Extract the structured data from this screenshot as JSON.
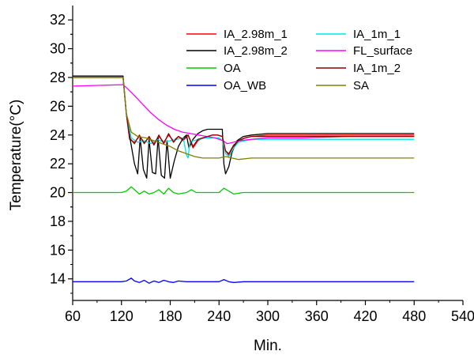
{
  "chart_data": {
    "type": "line",
    "xlabel": "Min.",
    "ylabel": "Temperature(°C)",
    "xlim": [
      60,
      540
    ],
    "ylim": [
      12.5,
      33
    ],
    "x_ticks": [
      "60",
      "120",
      "180",
      "240",
      "300",
      "360",
      "420",
      "480",
      "540"
    ],
    "y_ticks": [
      "14",
      "16",
      "18",
      "20",
      "22",
      "24",
      "26",
      "28",
      "30",
      "32"
    ],
    "grid": false,
    "legend_position": "top-right",
    "legend": [
      "IA_2.98m_1",
      "IA_2.98m_2",
      "OA",
      "OA_WB",
      "IA_1m_1",
      "FL_surface",
      "IA_1m_2",
      "SA"
    ],
    "series": [
      {
        "name": "IA_2.98m_1",
        "color": "#ff0000",
        "x": [
          60,
          122,
          126,
          130,
          136,
          142,
          148,
          154,
          160,
          166,
          172,
          178,
          184,
          190,
          196,
          202,
          208,
          214,
          220,
          226,
          232,
          238,
          244,
          248,
          252,
          258,
          264,
          272,
          280,
          300,
          340,
          400,
          480
        ],
        "y": [
          28.0,
          28.0,
          25.5,
          23.7,
          23.5,
          23.9,
          23.5,
          23.8,
          23.4,
          23.9,
          23.5,
          24.0,
          23.6,
          23.9,
          23.6,
          24.0,
          23.1,
          23.6,
          23.8,
          23.9,
          24.0,
          24.0,
          23.9,
          22.9,
          22.6,
          23.2,
          23.6,
          23.8,
          23.9,
          24.0,
          24.0,
          24.0,
          24.0
        ]
      },
      {
        "name": "IA_2.98m_2",
        "color": "#000000",
        "x": [
          60,
          122,
          126,
          131,
          136,
          140,
          143,
          147,
          151,
          154,
          158,
          162,
          165,
          169,
          173,
          176,
          180,
          185,
          190,
          196,
          200,
          203,
          208,
          214,
          220,
          226,
          232,
          238,
          244,
          246,
          248,
          252,
          256,
          262,
          270,
          280,
          300,
          340,
          400,
          480
        ],
        "y": [
          28.1,
          28.1,
          25.5,
          23.6,
          22.0,
          21.3,
          23.8,
          21.6,
          21.0,
          23.7,
          21.4,
          21.3,
          23.8,
          21.2,
          21.0,
          23.6,
          21.0,
          22.2,
          23.2,
          23.8,
          24.0,
          23.1,
          23.7,
          24.1,
          24.3,
          24.4,
          24.4,
          24.4,
          24.4,
          22.0,
          21.3,
          21.8,
          22.8,
          23.6,
          23.9,
          24.0,
          24.1,
          24.1,
          24.1,
          24.1
        ]
      },
      {
        "name": "OA",
        "color": "#00cc00",
        "x": [
          60,
          120,
          126,
          132,
          136,
          142,
          148,
          154,
          160,
          166,
          172,
          178,
          184,
          190,
          200,
          206,
          212,
          230,
          240,
          246,
          252,
          258,
          270,
          300,
          360,
          420,
          480
        ],
        "y": [
          20.0,
          20.0,
          20.1,
          20.4,
          20.2,
          19.9,
          20.1,
          19.9,
          20.0,
          20.2,
          19.9,
          20.3,
          20.0,
          19.9,
          20.0,
          20.2,
          20.0,
          20.0,
          20.0,
          20.3,
          20.1,
          19.9,
          20.0,
          20.0,
          20.0,
          20.0,
          20.0
        ]
      },
      {
        "name": "OA_WB",
        "color": "#0000ff",
        "x": [
          60,
          90,
          120,
          126,
          132,
          136,
          142,
          148,
          154,
          160,
          166,
          172,
          178,
          184,
          190,
          200,
          220,
          240,
          246,
          252,
          258,
          270,
          300,
          360,
          420,
          480
        ],
        "y": [
          13.8,
          13.8,
          13.8,
          13.85,
          14.05,
          13.85,
          13.75,
          13.9,
          13.7,
          13.85,
          13.75,
          13.9,
          13.8,
          13.75,
          13.85,
          13.8,
          13.8,
          13.8,
          13.95,
          13.8,
          13.75,
          13.8,
          13.8,
          13.8,
          13.8,
          13.8
        ]
      },
      {
        "name": "IA_1m_1",
        "color": "#00e5e5",
        "x": [
          60,
          122,
          126,
          132,
          140,
          148,
          156,
          164,
          172,
          180,
          188,
          196,
          200,
          202,
          204,
          208,
          216,
          224,
          232,
          240,
          244,
          248,
          252,
          258,
          264,
          272,
          280,
          300,
          340,
          400,
          480
        ],
        "y": [
          28.0,
          28.0,
          25.5,
          23.8,
          23.5,
          23.6,
          23.4,
          23.7,
          23.5,
          23.6,
          23.7,
          23.8,
          22.6,
          22.4,
          23.5,
          23.6,
          23.7,
          23.8,
          23.8,
          23.8,
          23.6,
          22.7,
          22.5,
          23.1,
          23.5,
          23.6,
          23.7,
          23.7,
          23.7,
          23.7,
          23.7
        ]
      },
      {
        "name": "FL_surface",
        "color": "#ff00ff",
        "x": [
          60,
          122,
          126,
          135,
          145,
          155,
          165,
          175,
          185,
          195,
          205,
          215,
          225,
          235,
          245,
          250,
          258,
          265,
          280,
          300,
          340,
          400,
          480
        ],
        "y": [
          27.4,
          27.5,
          27.3,
          26.8,
          26.2,
          25.6,
          25.1,
          24.7,
          24.4,
          24.2,
          24.1,
          24.0,
          23.9,
          23.8,
          23.6,
          23.4,
          23.5,
          23.6,
          23.7,
          23.8,
          23.8,
          23.9,
          23.9
        ]
      },
      {
        "name": "IA_1m_2",
        "color": "#8b0000",
        "x": [
          60,
          122,
          126,
          130,
          136,
          142,
          148,
          154,
          160,
          166,
          172,
          178,
          184,
          190,
          196,
          202,
          208,
          214,
          220,
          226,
          232,
          238,
          244,
          248,
          252,
          258,
          264,
          272,
          280,
          300,
          340,
          400,
          480
        ],
        "y": [
          28.0,
          28.0,
          25.5,
          23.8,
          23.4,
          24.0,
          23.4,
          23.9,
          23.3,
          24.0,
          23.4,
          24.1,
          23.5,
          23.9,
          23.7,
          24.0,
          23.2,
          23.7,
          23.8,
          23.9,
          24.0,
          24.0,
          23.9,
          22.9,
          22.7,
          23.3,
          23.6,
          23.8,
          23.9,
          23.9,
          23.9,
          23.9,
          23.9
        ]
      },
      {
        "name": "SA",
        "color": "#808000",
        "x": [
          60,
          122,
          126,
          132,
          140,
          150,
          160,
          170,
          180,
          190,
          200,
          210,
          220,
          240,
          248,
          256,
          264,
          280,
          300,
          340,
          400,
          480
        ],
        "y": [
          28.0,
          28.0,
          25.5,
          24.2,
          23.9,
          23.8,
          23.6,
          23.4,
          23.2,
          22.9,
          22.7,
          22.5,
          22.4,
          22.4,
          22.5,
          22.4,
          22.3,
          22.4,
          22.4,
          22.4,
          22.4,
          22.4
        ]
      }
    ]
  }
}
